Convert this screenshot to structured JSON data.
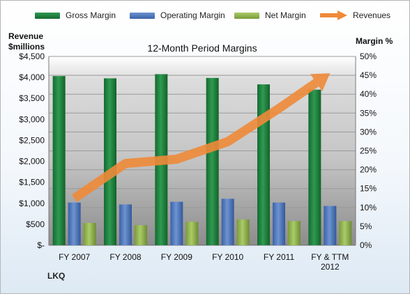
{
  "chart_data": {
    "type": "bar",
    "title": "12-Month Period Margins",
    "ylabel_left": "Revenue\n$millions",
    "ylabel_right": "Margin %",
    "left_axis": {
      "min": 0,
      "max": 4500,
      "step": 500,
      "ticks": [
        "$-",
        "$500",
        "$1,000",
        "$1,500",
        "$2,000",
        "$2,500",
        "$3,000",
        "$3,500",
        "$4,000",
        "$4,500"
      ]
    },
    "right_axis": {
      "min": 0,
      "max": 50,
      "step": 5,
      "ticks": [
        "0%",
        "5%",
        "10%",
        "15%",
        "20%",
        "25%",
        "30%",
        "35%",
        "40%",
        "45%",
        "50%"
      ]
    },
    "categories": [
      "FY 2007",
      "FY 2008",
      "FY 2009",
      "FY 2010",
      "FY 2011",
      "FY & TTM\n2012"
    ],
    "series": [
      {
        "name": "Gross Margin",
        "axis": "right",
        "kind": "bar",
        "color": "#1e7b3c",
        "values": [
          44.8,
          44.2,
          45.3,
          44.3,
          42.6,
          41.2
        ]
      },
      {
        "name": "Operating Margin",
        "axis": "right",
        "kind": "bar",
        "color": "#4a73b8",
        "values": [
          11.3,
          10.8,
          11.5,
          12.3,
          11.3,
          10.4
        ]
      },
      {
        "name": "Net Margin",
        "axis": "right",
        "kind": "bar",
        "color": "#8fb14c",
        "values": [
          5.9,
          5.3,
          6.2,
          6.8,
          6.4,
          6.4
        ]
      },
      {
        "name": "Revenues",
        "axis": "left",
        "kind": "arrow-line",
        "color": "#ee8a38",
        "values": [
          1120,
          1950,
          2050,
          2470,
          3260,
          4100
        ]
      }
    ],
    "legend_position": "top",
    "grid": true
  },
  "brand": "LKQ"
}
